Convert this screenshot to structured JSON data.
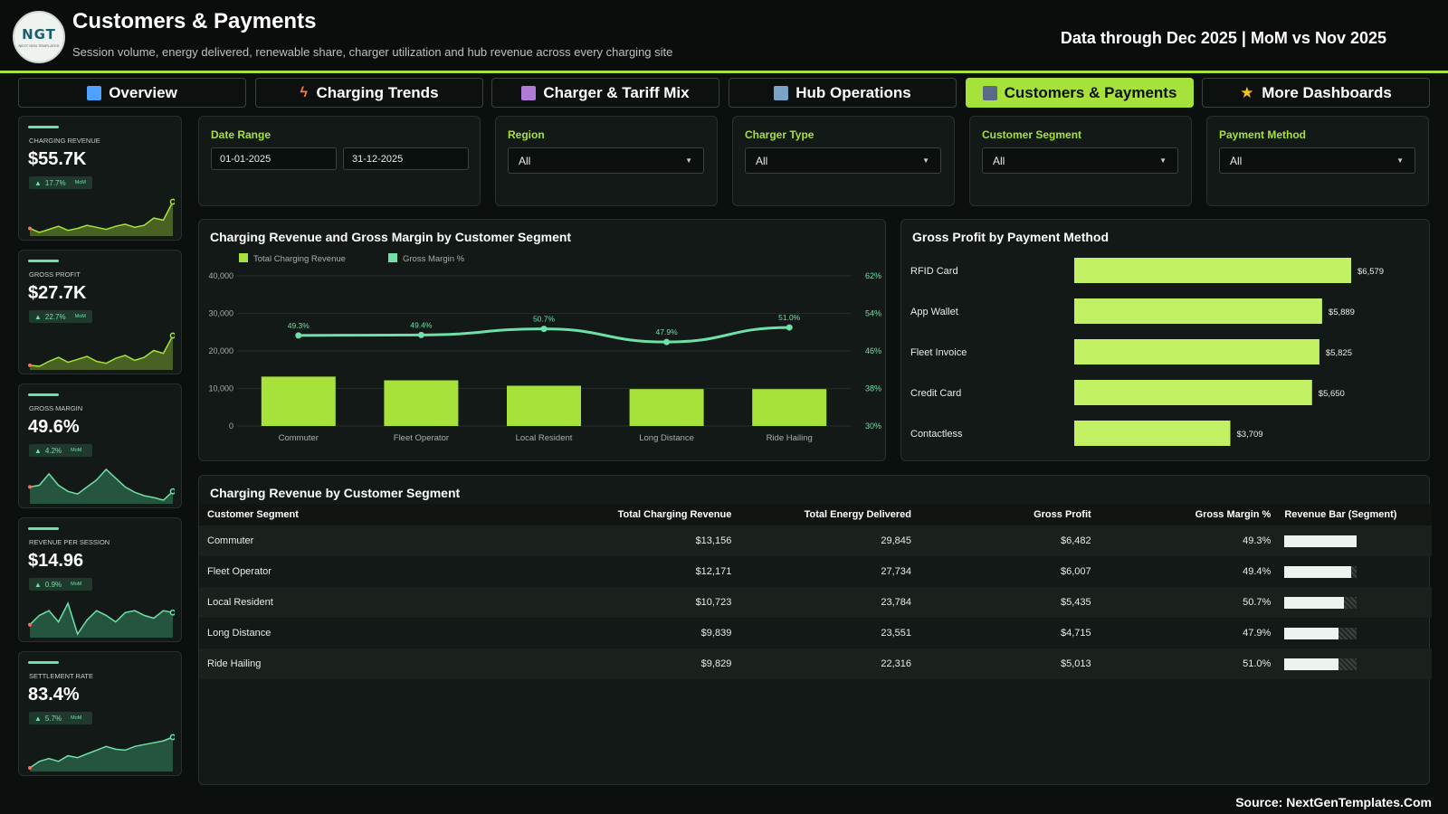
{
  "header": {
    "logo_text": "NGT",
    "logo_sub": "NEXT GEN TEMPLATES",
    "title": "Customers & Payments",
    "subtitle": "Session volume, energy delivered, renewable share, charger utilization and hub revenue across every charging site",
    "date_note": "Data through Dec 2025 | MoM vs Nov 2025"
  },
  "tabs": [
    {
      "label": "Overview",
      "icon": "bar-chart-icon",
      "active": false
    },
    {
      "label": "Charging Trends",
      "icon": "lightning-icon",
      "active": false
    },
    {
      "label": "Charger & Tariff Mix",
      "icon": "plug-icon",
      "active": false
    },
    {
      "label": "Hub Operations",
      "icon": "building-icon",
      "active": false
    },
    {
      "label": "Customers & Payments",
      "icon": "people-icon",
      "active": true
    },
    {
      "label": "More Dashboards",
      "icon": "star-icon",
      "active": false
    }
  ],
  "kpis": [
    {
      "label": "CHARGING REVENUE",
      "value": "$55.7K",
      "change": "17.7%",
      "mom": "MoM",
      "spark": [
        12,
        8,
        11,
        14,
        10,
        12,
        15,
        13,
        11,
        14,
        16,
        13,
        15,
        22,
        20,
        38
      ]
    },
    {
      "label": "GROSS PROFIT",
      "value": "$27.7K",
      "change": "22.7%",
      "mom": "MoM",
      "spark": [
        10,
        9,
        14,
        18,
        13,
        16,
        19,
        14,
        12,
        17,
        20,
        15,
        18,
        25,
        22,
        40
      ]
    },
    {
      "label": "GROSS MARGIN",
      "value": "49.6%",
      "change": "4.2%",
      "mom": "MoM",
      "spark": [
        20,
        22,
        35,
        22,
        15,
        12,
        20,
        28,
        40,
        30,
        20,
        14,
        10,
        8,
        5,
        15
      ]
    },
    {
      "label": "REVENUE PER SESSION",
      "value": "$14.96",
      "change": "0.9%",
      "mom": "MoM",
      "spark": [
        15,
        25,
        30,
        18,
        38,
        5,
        20,
        30,
        25,
        18,
        28,
        30,
        25,
        22,
        30,
        28
      ]
    },
    {
      "label": "SETTLEMENT RATE",
      "value": "83.4%",
      "change": "5.7%",
      "mom": "MoM",
      "spark": [
        5,
        12,
        15,
        12,
        18,
        16,
        20,
        24,
        28,
        25,
        24,
        28,
        30,
        32,
        34,
        38
      ]
    }
  ],
  "filters": {
    "date_range": {
      "label": "Date Range",
      "start": "01-01-2025",
      "end": "31-12-2025"
    },
    "region": {
      "label": "Region",
      "value": "All"
    },
    "charger_type": {
      "label": "Charger Type",
      "value": "All"
    },
    "customer_segment": {
      "label": "Customer Segment",
      "value": "All"
    },
    "payment_method": {
      "label": "Payment Method",
      "value": "All"
    }
  },
  "combo": {
    "title": "Charging Revenue and Gross Margin by Customer Segment",
    "legend_bar": "Total Charging Revenue",
    "legend_line": "Gross Margin %"
  },
  "payment": {
    "title": "Gross Profit by Payment Method"
  },
  "table": {
    "title": "Charging Revenue by Customer Segment",
    "headers": [
      "Customer Segment",
      "Total Charging Revenue",
      "Total Energy Delivered",
      "Gross Profit",
      "Gross Margin %",
      "Revenue Bar (Segment)"
    ],
    "rows": [
      {
        "segment": "Commuter",
        "revenue": "$13,156",
        "energy": "29,845",
        "profit": "$6,482",
        "margin": "49.3%",
        "bar": 1.0
      },
      {
        "segment": "Fleet Operator",
        "revenue": "$12,171",
        "energy": "27,734",
        "profit": "$6,007",
        "margin": "49.4%",
        "bar": 0.925
      },
      {
        "segment": "Local Resident",
        "revenue": "$10,723",
        "energy": "23,784",
        "profit": "$5,435",
        "margin": "50.7%",
        "bar": 0.815
      },
      {
        "segment": "Long Distance",
        "revenue": "$9,839",
        "energy": "23,551",
        "profit": "$4,715",
        "margin": "47.9%",
        "bar": 0.748
      },
      {
        "segment": "Ride Hailing",
        "revenue": "$9,829",
        "energy": "22,316",
        "profit": "$5,013",
        "margin": "51.0%",
        "bar": 0.747
      }
    ]
  },
  "source": "Source: NextGenTemplates.Com",
  "colors": {
    "accent": "#a6e23a",
    "mint": "#6ee0a8",
    "background": "#0b0f0d",
    "panel": "#131916"
  },
  "chart_data": [
    {
      "type": "bar",
      "categories": [
        "Commuter",
        "Fleet Operator",
        "Local Resident",
        "Long Distance",
        "Ride Hailing"
      ],
      "series": [
        {
          "name": "Total Charging Revenue",
          "values": [
            13156,
            12171,
            10723,
            9839,
            9829
          ],
          "axis": "left"
        },
        {
          "name": "Gross Margin %",
          "values": [
            49.3,
            49.4,
            50.7,
            47.9,
            51.0
          ],
          "labels": [
            "49.3%",
            "49.4%",
            "50.7%",
            "47.9%",
            "51.0%"
          ],
          "axis": "right",
          "type": "line"
        }
      ],
      "ylim": [
        0,
        40000
      ],
      "yticks": [
        "0",
        "10,000",
        "20,000",
        "30,000",
        "40,000"
      ],
      "y2lim": [
        30,
        62
      ],
      "y2ticks": [
        "30%",
        "38%",
        "46%",
        "54%",
        "62%"
      ],
      "legend": "top-left"
    },
    {
      "type": "bar",
      "orientation": "horizontal",
      "categories": [
        "RFID Card",
        "App Wallet",
        "Fleet Invoice",
        "Credit Card",
        "Contactless"
      ],
      "values": [
        6579,
        5889,
        5825,
        5650,
        3709
      ],
      "labels": [
        "$6,579",
        "$5,889",
        "$5,825",
        "$5,650",
        "$3,709"
      ],
      "xlim": [
        0,
        6579
      ]
    }
  ]
}
